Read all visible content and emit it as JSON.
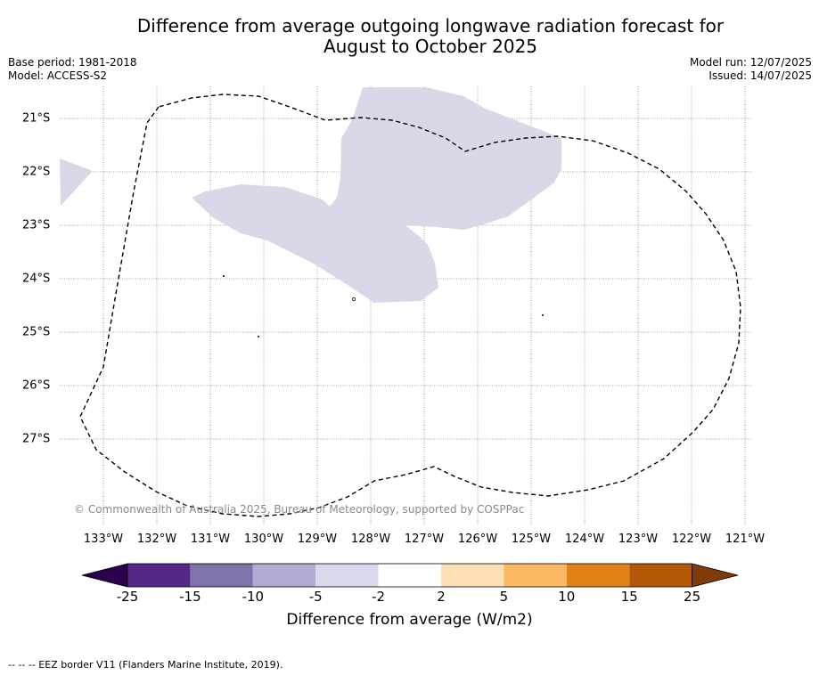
{
  "title_line1": "Difference from average outgoing longwave radiation forecast for",
  "title_line2": "August to October 2025",
  "base_period": "Base period: 1981-2018",
  "model": "Model: ACCESS-S2",
  "model_run": "Model run: 12/07/2025",
  "issued": "Issued: 14/07/2025",
  "credit": "© Commonwealth of Australia 2025, Bureau of Meteorology, supported by COSPPac",
  "footnote": "--  --  -- EEZ border V11 (Flanders Marine Institute, 2019).",
  "map": {
    "lon_labels": [
      "133°W",
      "132°W",
      "131°W",
      "130°W",
      "129°W",
      "128°W",
      "127°W",
      "126°W",
      "125°W",
      "124°W",
      "123°W",
      "122°W",
      "121°W"
    ],
    "lat_labels": [
      "21°S",
      "22°S",
      "23°S",
      "24°S",
      "25°S",
      "26°S",
      "27°S"
    ],
    "anomaly_fill_color": "#d8d8e9",
    "border_color": "#000000"
  },
  "colorbar": {
    "label": "Difference from average (W/m2)",
    "ticks": [
      "-25",
      "-15",
      "-10",
      "-5",
      "-2",
      "2",
      "5",
      "10",
      "15",
      "25"
    ],
    "colors": [
      "#2d004b",
      "#542788",
      "#8073ac",
      "#b2abd2",
      "#d8daeb",
      "#ffffff",
      "#fee0b6",
      "#fdb863",
      "#e08214",
      "#b35806",
      "#7f3b08"
    ]
  }
}
